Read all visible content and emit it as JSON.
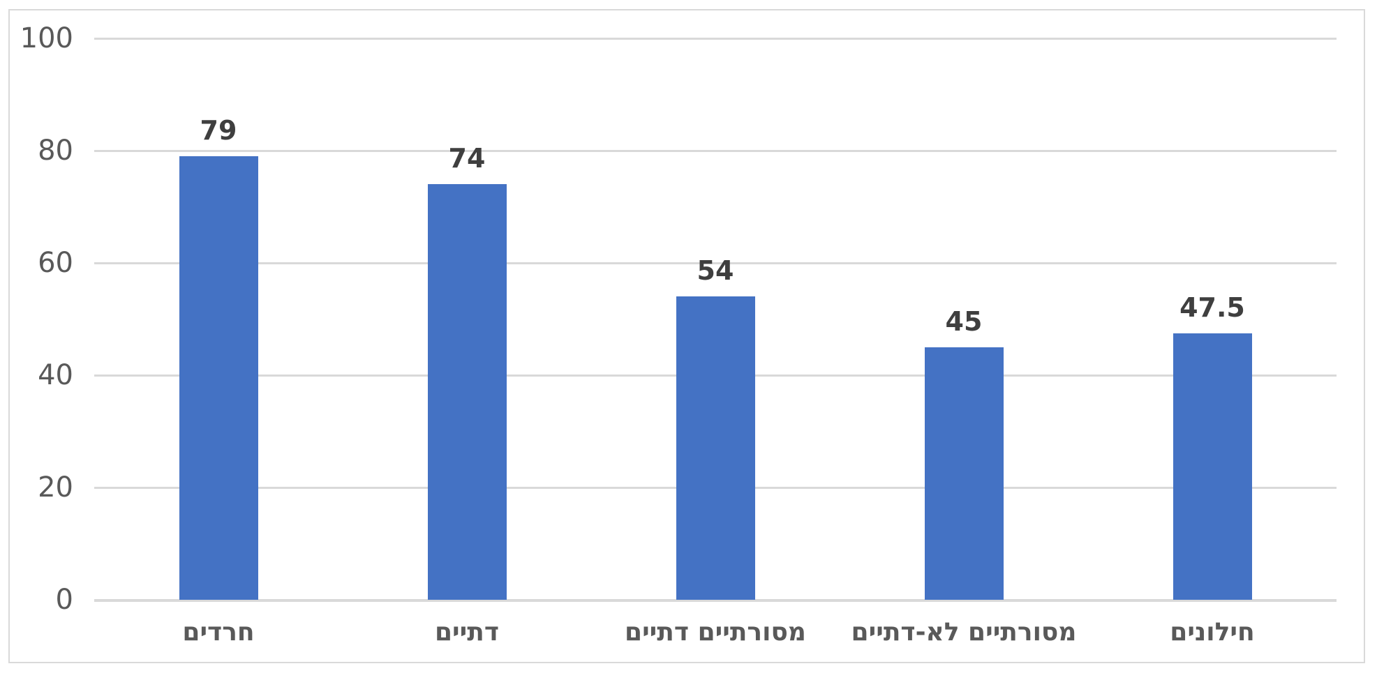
{
  "chart_data": {
    "type": "bar",
    "title": "",
    "xlabel": "",
    "ylabel": "",
    "categories": [
      "חרדים",
      "דתיים",
      "מסורתיים דתיים",
      "מסורתיים לא-דתיים",
      "חילונים"
    ],
    "values": [
      79,
      74,
      54,
      45,
      47.5
    ],
    "value_labels": [
      "79",
      "74",
      "54",
      "45",
      "47.5"
    ],
    "y_ticks": [
      0,
      20,
      40,
      60,
      80,
      100
    ],
    "y_tick_labels": [
      "0",
      "20",
      "40",
      "60",
      "80",
      "100"
    ],
    "ylim": [
      0,
      100
    ],
    "grid": true,
    "legend_position": "none",
    "labels_rtl": true,
    "colors": {
      "bar": "#4472C4",
      "value_label": "#3F3F3F",
      "axis_text": "#595959",
      "gridline": "#D9D9D9",
      "chart_border": "#D9D9D9",
      "background": "#FFFFFF"
    }
  }
}
